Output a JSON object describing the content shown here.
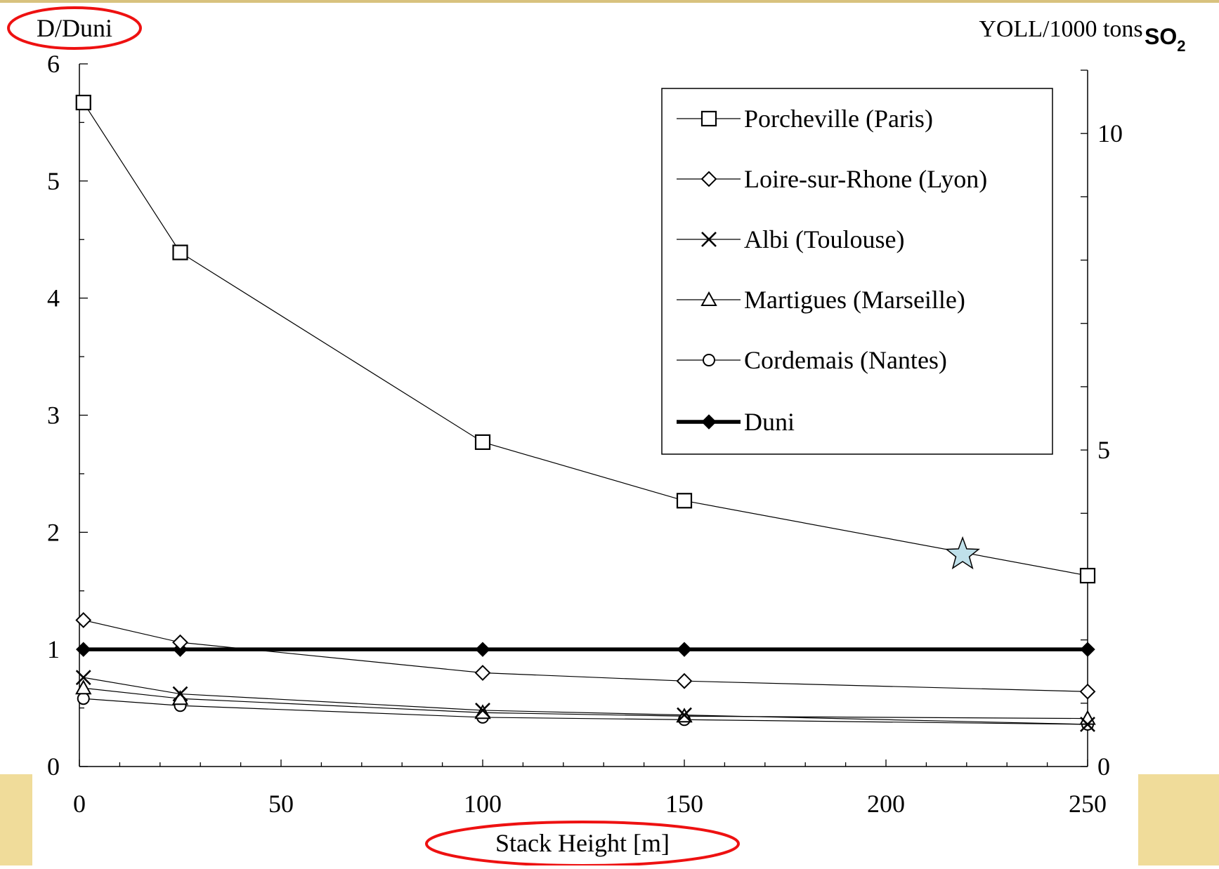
{
  "colors": {
    "background": "#ffffff",
    "frame_top": "#d8c27e",
    "corner_panels": "#f0dc9a",
    "ink": "#000000",
    "highlight_ellipse": "#ee1111",
    "star_fill": "#bfe0ea"
  },
  "chart_data": {
    "type": "line",
    "x_axis": {
      "label": "Stack Height [m]",
      "range": [
        0,
        250
      ],
      "ticks": [
        "0",
        "50",
        "100",
        "150",
        "200",
        "250"
      ],
      "minor_step": 10
    },
    "y_axis_left": {
      "label": "D/Duni",
      "range": [
        0,
        6
      ],
      "ticks": [
        "0",
        "1",
        "2",
        "3",
        "4",
        "5",
        "6"
      ],
      "minor_step": 0.5
    },
    "y_axis_right": {
      "label": "YOLL/1000 tons",
      "range": [
        0,
        11
      ],
      "ticks": [
        "0",
        "5",
        "10"
      ],
      "tick_values": [
        0,
        5,
        10
      ],
      "minor_step": 1
    },
    "corner_label": {
      "main": "SO",
      "subscript": "2"
    },
    "grid": false,
    "legend_position": "top-right",
    "x": [
      1,
      25,
      100,
      150,
      250
    ],
    "series": [
      {
        "name": "Porcheville (Paris)",
        "marker": "square",
        "style": "thin",
        "values": [
          5.67,
          4.39,
          2.77,
          2.27,
          1.63
        ]
      },
      {
        "name": "Loire-sur-Rhone (Lyon)",
        "marker": "diamond",
        "style": "thin",
        "values": [
          1.25,
          1.06,
          0.8,
          0.73,
          0.64
        ]
      },
      {
        "name": "Albi (Toulouse)",
        "marker": "x",
        "style": "thin",
        "values": [
          0.76,
          0.62,
          0.48,
          0.44,
          0.36
        ]
      },
      {
        "name": "Martigues (Marseille)",
        "marker": "triangle",
        "style": "thin",
        "values": [
          0.67,
          0.58,
          0.46,
          0.43,
          0.41
        ]
      },
      {
        "name": "Cordemais (Nantes)",
        "marker": "circle",
        "style": "thin",
        "values": [
          0.58,
          0.52,
          0.42,
          0.4,
          0.36
        ]
      },
      {
        "name": "Duni",
        "marker": "filled-diamond",
        "style": "thick",
        "values": [
          1,
          1,
          1,
          1,
          1
        ]
      }
    ],
    "star_marker": {
      "x": 219,
      "y": 1.81
    }
  }
}
